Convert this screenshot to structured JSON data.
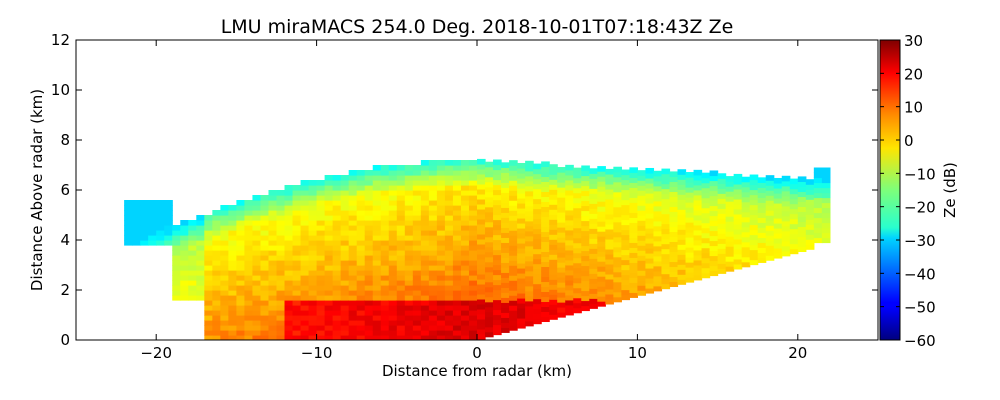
{
  "chart_data": {
    "type": "heatmap",
    "title": "LMU miraMACS 254.0 Deg. 2018-10-01T07:18:43Z  Ze",
    "xlabel": "Distance from radar (km)",
    "ylabel": "Distance Above radar  (km)",
    "xlim": [
      -25,
      25
    ],
    "ylim": [
      0,
      12
    ],
    "x_ticks": [
      -20,
      -10,
      0,
      10,
      20
    ],
    "x_tick_labels": [
      "−20",
      "−10",
      "0",
      "10",
      "20"
    ],
    "y_ticks": [
      0,
      2,
      4,
      6,
      8,
      10,
      12
    ],
    "y_tick_labels": [
      "0",
      "2",
      "4",
      "6",
      "8",
      "10",
      "12"
    ],
    "colorbar": {
      "label": "Ze (dB)",
      "range": [
        -60,
        30
      ],
      "ticks": [
        30,
        20,
        10,
        0,
        -10,
        -20,
        -30,
        -40,
        -50,
        -60
      ],
      "tick_labels": [
        "30",
        "20",
        "10",
        "0",
        "−10",
        "−20",
        "−30",
        "−40",
        "−50",
        "−60"
      ],
      "colormap": "jet"
    },
    "scan": {
      "echo_top_km": 7.1,
      "left_edge_km": -22,
      "right_edge_km": 22,
      "bright_band_top_km": 1.6,
      "max_ze_db": 26,
      "min_ze_db": -30
    }
  }
}
